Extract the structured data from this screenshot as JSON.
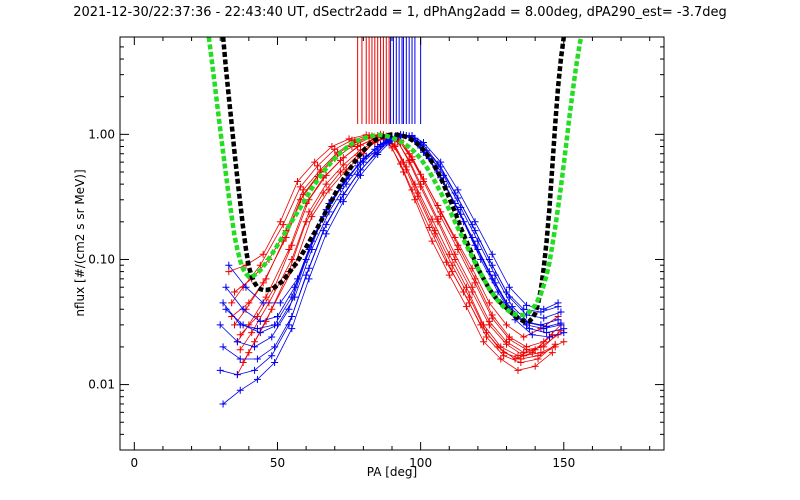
{
  "chart_data": {
    "type": "line",
    "title": "2021-12-30/22:37:36 - 22:43:40 UT, dSectr2add = 1, dPhAng2add = 8.00deg, dPA290_est=  -3.7deg",
    "xlabel": "PA [deg]",
    "ylabel": "nflux [#/(cm2 s sr MeV)]",
    "xlim": [
      -5,
      185
    ],
    "ylim": [
      0.003,
      6.0
    ],
    "y_scale": "log",
    "x_ticks": [
      0,
      50,
      100,
      150
    ],
    "x_tick_labels": [
      "0",
      "50",
      "100",
      "150"
    ],
    "y_ticks": [
      0.01,
      0.1,
      1.0
    ],
    "y_tick_labels": [
      "0.01",
      "0.10",
      "1.00"
    ],
    "grid": false,
    "colors": {
      "red": "#ee0000",
      "blue": "#0000ee",
      "black": "#000000",
      "green": "#22dd22"
    },
    "fit_black": {
      "x": [
        31,
        32,
        33,
        34,
        35,
        36,
        37,
        38,
        39,
        40,
        41,
        42,
        43,
        44,
        45,
        46,
        48,
        50,
        52,
        54,
        56,
        58,
        60,
        62,
        64,
        66,
        68,
        70,
        72,
        74,
        76,
        78,
        80,
        82,
        84,
        86,
        88,
        90,
        92,
        94,
        96,
        98,
        100,
        102,
        104,
        106,
        108,
        110,
        112,
        114,
        116,
        118,
        120,
        122,
        124,
        126,
        128,
        130,
        132,
        134,
        136,
        137,
        138,
        139,
        140,
        141,
        142,
        143,
        144,
        145,
        146,
        147,
        148,
        149,
        150,
        151
      ],
      "y": [
        6.0,
        3.4,
        2.0,
        1.2,
        0.72,
        0.44,
        0.28,
        0.18,
        0.12,
        0.088,
        0.073,
        0.065,
        0.06,
        0.058,
        0.057,
        0.057,
        0.058,
        0.062,
        0.068,
        0.078,
        0.09,
        0.105,
        0.125,
        0.15,
        0.18,
        0.22,
        0.27,
        0.33,
        0.4,
        0.48,
        0.56,
        0.65,
        0.74,
        0.83,
        0.9,
        0.95,
        0.98,
        1.0,
        0.99,
        0.97,
        0.93,
        0.87,
        0.8,
        0.7,
        0.6,
        0.5,
        0.4,
        0.31,
        0.24,
        0.18,
        0.14,
        0.11,
        0.085,
        0.07,
        0.058,
        0.05,
        0.045,
        0.041,
        0.037,
        0.034,
        0.032,
        0.032,
        0.032,
        0.034,
        0.037,
        0.044,
        0.058,
        0.085,
        0.14,
        0.26,
        0.55,
        1.2,
        2.4,
        4.0,
        6.0,
        6.0
      ]
    },
    "fit_green": {
      "x": [
        26,
        27,
        28,
        29,
        30,
        31,
        32,
        33,
        34,
        35,
        36,
        37,
        38,
        39,
        40,
        41,
        42,
        44,
        46,
        48,
        50,
        52,
        54,
        56,
        58,
        60,
        62,
        64,
        66,
        68,
        70,
        72,
        74,
        76,
        78,
        80,
        82,
        84,
        86,
        88,
        90,
        92,
        94,
        96,
        98,
        100,
        102,
        104,
        106,
        108,
        110,
        112,
        114,
        116,
        118,
        120,
        122,
        124,
        126,
        128,
        130,
        132,
        134,
        136,
        138,
        140,
        142,
        143,
        144,
        145,
        146,
        147,
        148,
        149,
        150,
        151,
        152,
        153,
        154,
        155,
        156
      ],
      "y": [
        6.0,
        4.0,
        2.6,
        1.7,
        1.1,
        0.72,
        0.48,
        0.32,
        0.22,
        0.155,
        0.12,
        0.097,
        0.084,
        0.077,
        0.073,
        0.073,
        0.075,
        0.082,
        0.094,
        0.11,
        0.13,
        0.155,
        0.185,
        0.22,
        0.26,
        0.31,
        0.37,
        0.43,
        0.5,
        0.57,
        0.64,
        0.71,
        0.78,
        0.84,
        0.89,
        0.93,
        0.96,
        0.98,
        0.99,
        0.97,
        0.94,
        0.9,
        0.85,
        0.79,
        0.72,
        0.64,
        0.55,
        0.46,
        0.38,
        0.31,
        0.25,
        0.2,
        0.16,
        0.13,
        0.105,
        0.085,
        0.07,
        0.058,
        0.05,
        0.044,
        0.04,
        0.037,
        0.036,
        0.036,
        0.038,
        0.043,
        0.053,
        0.062,
        0.075,
        0.095,
        0.13,
        0.18,
        0.26,
        0.38,
        0.58,
        0.9,
        1.4,
        2.1,
        3.1,
        4.4,
        6.0
      ]
    },
    "series": [
      {
        "color": "red",
        "x": [
          36,
          40,
          46,
          54,
          60,
          66,
          72,
          78,
          84,
          88,
          92,
          96,
          100,
          106,
          112,
          118,
          124,
          130,
          136,
          142,
          148
        ],
        "y": [
          0.022,
          0.03,
          0.05,
          0.12,
          0.28,
          0.45,
          0.62,
          0.8,
          0.93,
          0.97,
          0.87,
          0.62,
          0.4,
          0.21,
          0.11,
          0.06,
          0.032,
          0.022,
          0.018,
          0.02,
          0.025
        ]
      },
      {
        "color": "red",
        "x": [
          35,
          39,
          45,
          53,
          59,
          65,
          71,
          77,
          83,
          87,
          91,
          95,
          99,
          105,
          111,
          117,
          123,
          129,
          135,
          141,
          147
        ],
        "y": [
          0.03,
          0.04,
          0.065,
          0.15,
          0.33,
          0.5,
          0.7,
          0.86,
          0.96,
          0.99,
          0.82,
          0.55,
          0.34,
          0.17,
          0.09,
          0.05,
          0.026,
          0.018,
          0.016,
          0.017,
          0.02
        ]
      },
      {
        "color": "red",
        "x": [
          37,
          41,
          47,
          55,
          61,
          67,
          73,
          79,
          85,
          89,
          93,
          97,
          101,
          107,
          113,
          119,
          125,
          131,
          137,
          143,
          149
        ],
        "y": [
          0.019,
          0.026,
          0.045,
          0.1,
          0.24,
          0.4,
          0.57,
          0.75,
          0.9,
          0.96,
          0.9,
          0.66,
          0.44,
          0.24,
          0.13,
          0.07,
          0.036,
          0.024,
          0.02,
          0.022,
          0.03
        ]
      },
      {
        "color": "red",
        "x": [
          34,
          38,
          44,
          52,
          58,
          64,
          70,
          76,
          82,
          86,
          90,
          94,
          98,
          104,
          110,
          116,
          122,
          128,
          134,
          140,
          146
        ],
        "y": [
          0.045,
          0.06,
          0.09,
          0.19,
          0.38,
          0.56,
          0.76,
          0.9,
          0.98,
          1.0,
          0.78,
          0.5,
          0.3,
          0.14,
          0.075,
          0.042,
          0.022,
          0.016,
          0.013,
          0.014,
          0.018
        ]
      },
      {
        "color": "red",
        "x": [
          38,
          42,
          48,
          56,
          62,
          68,
          74,
          80,
          84,
          88,
          92,
          96,
          100,
          106,
          112,
          118,
          124,
          130,
          136,
          142,
          150
        ],
        "y": [
          0.015,
          0.022,
          0.04,
          0.09,
          0.22,
          0.36,
          0.52,
          0.7,
          0.88,
          0.95,
          0.88,
          0.6,
          0.38,
          0.2,
          0.1,
          0.055,
          0.03,
          0.021,
          0.017,
          0.018,
          0.022
        ]
      },
      {
        "color": "red",
        "x": [
          33,
          39,
          45,
          51,
          57,
          63,
          69,
          75,
          81,
          85,
          89,
          93,
          97,
          103,
          109,
          115,
          121,
          127,
          133,
          139,
          145
        ],
        "y": [
          0.08,
          0.09,
          0.11,
          0.2,
          0.42,
          0.6,
          0.8,
          0.92,
          0.99,
          0.98,
          0.85,
          0.58,
          0.36,
          0.18,
          0.095,
          0.055,
          0.03,
          0.02,
          0.016,
          0.018,
          0.024
        ]
      },
      {
        "color": "red",
        "x": [
          36,
          40,
          46,
          54,
          60,
          66,
          72,
          78,
          84,
          88,
          92,
          96,
          100,
          106,
          112,
          118,
          124,
          130,
          136,
          142,
          148
        ],
        "y": [
          0.012,
          0.018,
          0.032,
          0.08,
          0.2,
          0.34,
          0.5,
          0.68,
          0.86,
          0.94,
          0.92,
          0.7,
          0.48,
          0.27,
          0.15,
          0.085,
          0.045,
          0.03,
          0.024,
          0.028,
          0.035
        ]
      },
      {
        "color": "red",
        "x": [
          35,
          41,
          47,
          53,
          59,
          65,
          71,
          77,
          83,
          87,
          91,
          95,
          99,
          105,
          111,
          117,
          123,
          129,
          135,
          141,
          147
        ],
        "y": [
          0.055,
          0.07,
          0.1,
          0.17,
          0.36,
          0.52,
          0.72,
          0.88,
          0.97,
          0.99,
          0.8,
          0.52,
          0.32,
          0.16,
          0.08,
          0.045,
          0.024,
          0.017,
          0.015,
          0.016,
          0.021
        ]
      },
      {
        "color": "red",
        "x": [
          37,
          43,
          49,
          55,
          61,
          67,
          73,
          79,
          85,
          89,
          93,
          97,
          101,
          107,
          113,
          119,
          125,
          131,
          137,
          143,
          149
        ],
        "y": [
          0.025,
          0.035,
          0.06,
          0.13,
          0.3,
          0.47,
          0.65,
          0.82,
          0.94,
          0.97,
          0.86,
          0.63,
          0.42,
          0.22,
          0.12,
          0.065,
          0.034,
          0.023,
          0.019,
          0.02,
          0.027
        ]
      },
      {
        "color": "red",
        "x": [
          34,
          40,
          46,
          52,
          58,
          64,
          70,
          76,
          82,
          86,
          90,
          94,
          98,
          104,
          110,
          116,
          122,
          128,
          134,
          140,
          146
        ],
        "y": [
          0.035,
          0.045,
          0.07,
          0.14,
          0.3,
          0.46,
          0.64,
          0.8,
          0.93,
          0.97,
          0.84,
          0.6,
          0.4,
          0.21,
          0.11,
          0.06,
          0.03,
          0.02,
          0.017,
          0.019,
          0.025
        ]
      },
      {
        "color": "blue",
        "x": [
          31,
          37,
          43,
          49,
          55,
          61,
          67,
          73,
          79,
          85,
          89,
          93,
          97,
          101,
          107,
          113,
          119,
          125,
          131,
          137,
          143,
          149
        ],
        "y": [
          0.045,
          0.03,
          0.028,
          0.03,
          0.05,
          0.12,
          0.25,
          0.4,
          0.6,
          0.8,
          0.93,
          1.0,
          0.92,
          0.72,
          0.45,
          0.25,
          0.13,
          0.07,
          0.04,
          0.03,
          0.028,
          0.03
        ]
      },
      {
        "color": "blue",
        "x": [
          30,
          36,
          42,
          48,
          54,
          60,
          66,
          72,
          78,
          84,
          88,
          92,
          96,
          100,
          106,
          112,
          118,
          124,
          130,
          136,
          142,
          148
        ],
        "y": [
          0.03,
          0.022,
          0.02,
          0.024,
          0.04,
          0.1,
          0.22,
          0.37,
          0.56,
          0.76,
          0.9,
          0.98,
          0.95,
          0.78,
          0.5,
          0.28,
          0.15,
          0.08,
          0.045,
          0.032,
          0.03,
          0.033
        ]
      },
      {
        "color": "blue",
        "x": [
          32,
          38,
          44,
          50,
          56,
          62,
          68,
          74,
          80,
          86,
          90,
          94,
          98,
          102,
          108,
          114,
          120,
          126,
          132,
          138,
          144,
          150
        ],
        "y": [
          0.06,
          0.04,
          0.032,
          0.035,
          0.06,
          0.14,
          0.28,
          0.44,
          0.64,
          0.83,
          0.95,
          0.99,
          0.9,
          0.68,
          0.42,
          0.23,
          0.12,
          0.065,
          0.038,
          0.028,
          0.026,
          0.028
        ]
      },
      {
        "color": "blue",
        "x": [
          31,
          37,
          43,
          49,
          55,
          61,
          67,
          73,
          79,
          85,
          89,
          93,
          97,
          101,
          107,
          113,
          119,
          125,
          131,
          137,
          143,
          149
        ],
        "y": [
          0.02,
          0.016,
          0.016,
          0.02,
          0.035,
          0.085,
          0.19,
          0.33,
          0.52,
          0.72,
          0.88,
          0.97,
          0.96,
          0.82,
          0.55,
          0.31,
          0.17,
          0.09,
          0.05,
          0.036,
          0.034,
          0.038
        ]
      },
      {
        "color": "blue",
        "x": [
          33,
          39,
          45,
          51,
          57,
          63,
          69,
          75,
          81,
          87,
          91,
          95,
          99,
          103,
          109,
          115,
          121,
          127,
          133,
          139,
          145,
          150
        ],
        "y": [
          0.09,
          0.06,
          0.045,
          0.045,
          0.07,
          0.16,
          0.3,
          0.47,
          0.67,
          0.85,
          0.96,
          0.98,
          0.87,
          0.64,
          0.38,
          0.2,
          0.1,
          0.055,
          0.033,
          0.025,
          0.024,
          0.026
        ]
      },
      {
        "color": "blue",
        "x": [
          30,
          36,
          42,
          48,
          54,
          60,
          66,
          72,
          78,
          84,
          88,
          92,
          96,
          100,
          106,
          112,
          118,
          124,
          130,
          136,
          142,
          148
        ],
        "y": [
          0.013,
          0.012,
          0.013,
          0.017,
          0.03,
          0.075,
          0.17,
          0.3,
          0.48,
          0.7,
          0.86,
          0.96,
          0.97,
          0.84,
          0.58,
          0.34,
          0.19,
          0.1,
          0.055,
          0.04,
          0.038,
          0.042
        ]
      },
      {
        "color": "blue",
        "x": [
          32,
          38,
          44,
          50,
          56,
          62,
          68,
          74,
          80,
          86,
          90,
          94,
          98,
          102,
          108,
          114,
          120,
          126,
          132,
          138,
          144,
          149
        ],
        "y": [
          0.04,
          0.03,
          0.026,
          0.03,
          0.05,
          0.12,
          0.24,
          0.4,
          0.6,
          0.8,
          0.92,
          0.99,
          0.93,
          0.74,
          0.47,
          0.26,
          0.14,
          0.075,
          0.042,
          0.031,
          0.029,
          0.031
        ]
      },
      {
        "color": "blue",
        "x": [
          31,
          37,
          43,
          49,
          55,
          61,
          67,
          73,
          79,
          85,
          89,
          93,
          97,
          101,
          107,
          113,
          119,
          125,
          131,
          137,
          143,
          148
        ],
        "y": [
          0.007,
          0.009,
          0.011,
          0.015,
          0.028,
          0.07,
          0.16,
          0.29,
          0.47,
          0.69,
          0.85,
          0.95,
          0.98,
          0.86,
          0.6,
          0.36,
          0.2,
          0.11,
          0.06,
          0.043,
          0.04,
          0.045
        ]
      }
    ],
    "vertical_markers": {
      "red": [
        78,
        79.5,
        81,
        82,
        83,
        84,
        85,
        86,
        87,
        88,
        89
      ],
      "blue": [
        89.5,
        90.5,
        91.5,
        92.5,
        93.5,
        94,
        95,
        96,
        97,
        98,
        100
      ]
    }
  }
}
